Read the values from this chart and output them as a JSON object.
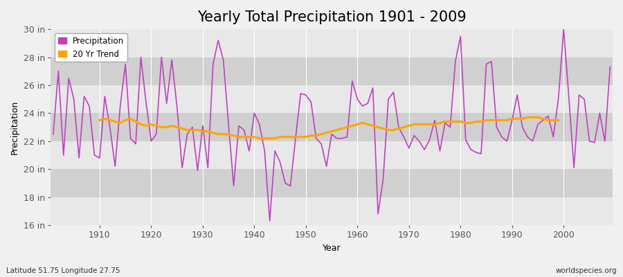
{
  "title": "Yearly Total Precipitation 1901 - 2009",
  "xlabel": "Year",
  "ylabel": "Precipitation",
  "lat_lon_label": "Latitude 51.75 Longitude 27.75",
  "source_label": "worldspecies.org",
  "ylim": [
    16,
    30
  ],
  "yticks": [
    16,
    18,
    20,
    22,
    24,
    26,
    28,
    30
  ],
  "ytick_labels": [
    "16 in",
    "18 in",
    "20 in",
    "22 in",
    "24 in",
    "26 in",
    "28 in",
    "30 in"
  ],
  "precip_color": "#c040c0",
  "trend_color": "#ffa500",
  "fig_bg_color": "#f0f0f0",
  "plot_bg_color": "#dcdcdc",
  "band_color_light": "#e8e8e8",
  "band_color_dark": "#d0d0d0",
  "years": [
    1901,
    1902,
    1903,
    1904,
    1905,
    1906,
    1907,
    1908,
    1909,
    1910,
    1911,
    1912,
    1913,
    1914,
    1915,
    1916,
    1917,
    1918,
    1919,
    1920,
    1921,
    1922,
    1923,
    1924,
    1925,
    1926,
    1927,
    1928,
    1929,
    1930,
    1931,
    1932,
    1933,
    1934,
    1935,
    1936,
    1937,
    1938,
    1939,
    1940,
    1941,
    1942,
    1943,
    1944,
    1945,
    1946,
    1947,
    1948,
    1949,
    1950,
    1951,
    1952,
    1953,
    1954,
    1955,
    1956,
    1957,
    1958,
    1959,
    1960,
    1961,
    1962,
    1963,
    1964,
    1965,
    1966,
    1967,
    1968,
    1969,
    1970,
    1971,
    1972,
    1973,
    1974,
    1975,
    1976,
    1977,
    1978,
    1979,
    1980,
    1981,
    1982,
    1983,
    1984,
    1985,
    1986,
    1987,
    1988,
    1989,
    1990,
    1991,
    1992,
    1993,
    1994,
    1995,
    1996,
    1997,
    1998,
    1999,
    2000,
    2001,
    2002,
    2003,
    2004,
    2005,
    2006,
    2007,
    2008,
    2009
  ],
  "precipitation": [
    22.5,
    27.0,
    21.0,
    26.5,
    25.0,
    20.8,
    25.2,
    24.5,
    21.0,
    20.8,
    25.2,
    23.0,
    20.2,
    24.5,
    27.5,
    22.2,
    21.8,
    28.0,
    24.8,
    22.0,
    22.5,
    28.0,
    24.7,
    27.8,
    24.5,
    20.1,
    22.5,
    23.0,
    19.9,
    23.1,
    20.1,
    27.5,
    29.2,
    27.8,
    23.2,
    18.8,
    23.1,
    22.8,
    21.3,
    24.0,
    23.2,
    21.3,
    16.3,
    21.3,
    20.5,
    19.0,
    18.8,
    22.2,
    25.4,
    25.3,
    24.8,
    22.2,
    21.8,
    20.2,
    22.5,
    22.2,
    22.2,
    22.3,
    26.3,
    25.0,
    24.5,
    24.7,
    25.8,
    16.8,
    19.3,
    25.0,
    25.5,
    23.0,
    22.3,
    21.5,
    22.4,
    22.0,
    21.4,
    22.1,
    23.5,
    21.3,
    23.3,
    23.0,
    27.7,
    29.5,
    22.1,
    21.4,
    21.2,
    21.1,
    27.5,
    27.7,
    23.0,
    22.3,
    22.0,
    23.5,
    25.3,
    23.0,
    22.3,
    22.0,
    23.2,
    23.5,
    23.8,
    22.3,
    25.1,
    30.0,
    25.2,
    20.1,
    25.3,
    25.0,
    22.0,
    21.9,
    24.0,
    22.0,
    27.3
  ],
  "trend": [
    null,
    null,
    null,
    null,
    null,
    null,
    null,
    null,
    null,
    23.5,
    23.6,
    23.5,
    23.4,
    23.3,
    23.5,
    23.6,
    23.4,
    23.2,
    23.1,
    23.2,
    23.1,
    23.0,
    23.0,
    23.1,
    23.0,
    22.9,
    22.8,
    22.8,
    22.8,
    22.7,
    22.7,
    22.6,
    22.5,
    22.5,
    22.5,
    22.4,
    22.3,
    22.3,
    22.3,
    22.3,
    22.2,
    22.2,
    22.2,
    22.2,
    22.3,
    22.3,
    22.3,
    22.3,
    22.3,
    22.3,
    22.4,
    22.4,
    22.5,
    22.6,
    22.7,
    22.8,
    22.9,
    23.0,
    23.1,
    23.2,
    23.3,
    23.2,
    23.1,
    23.0,
    22.9,
    22.8,
    22.8,
    22.9,
    23.0,
    23.1,
    23.2,
    23.2,
    23.2,
    23.2,
    23.2,
    23.3,
    23.4,
    23.4,
    23.4,
    23.4,
    23.3,
    23.3,
    23.4,
    23.4,
    23.5,
    23.5,
    23.5,
    23.5,
    23.5,
    23.6,
    23.6,
    23.6,
    23.7,
    23.7,
    23.7,
    23.6,
    23.5,
    23.5,
    23.5
  ],
  "xticks": [
    1910,
    1920,
    1930,
    1940,
    1950,
    1960,
    1970,
    1980,
    1990,
    2000
  ],
  "legend_entries": [
    "Precipitation",
    "20 Yr Trend"
  ],
  "title_fontsize": 15,
  "axis_fontsize": 9,
  "tick_fontsize": 9
}
